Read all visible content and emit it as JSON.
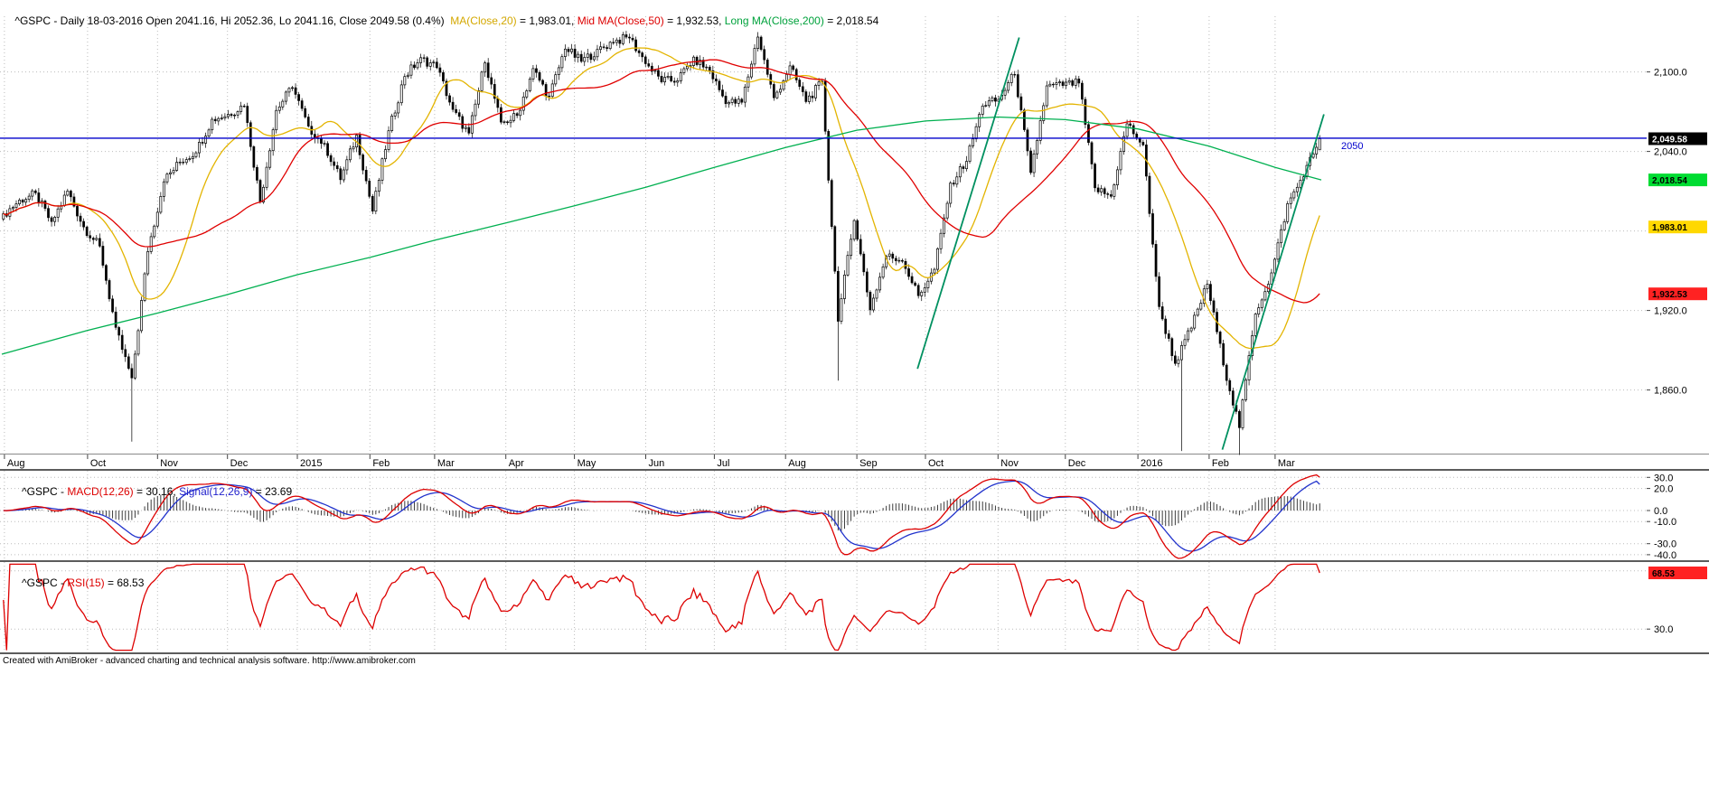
{
  "footer": {
    "text": "Created with AmiBroker - advanced charting and technical analysis software. http://www.amibroker.com"
  },
  "chart_data": [
    {
      "type": "candlestick",
      "symbol": "^GSPC",
      "interval": "Daily",
      "date": "18-03-2016",
      "title_segments": [
        {
          "text": "^GSPC - Daily 18-03-2016 Open 2041.16, Hi 2052.36, Lo 2041.16, Close 2049.58 (0.4%)  ",
          "color": "#000000"
        },
        {
          "text": "MA(Close,20)",
          "color": "#d4a800"
        },
        {
          "text": " = 1,983.01, ",
          "color": "#000000"
        },
        {
          "text": "Mid MA(Close,50)",
          "color": "#dd0000"
        },
        {
          "text": " = 1,932.53, ",
          "color": "#000000"
        },
        {
          "text": "Long MA(Close,200)",
          "color": "#00a23c"
        },
        {
          "text": " = 2,018.54",
          "color": "#000000"
        }
      ],
      "ohlc_last": {
        "open": 2041.16,
        "high": 2052.36,
        "low": 2041.16,
        "close": 2049.58,
        "change_pct": "0.4%"
      },
      "ylim": [
        1812,
        2142
      ],
      "grid_prices": [
        2100,
        2040,
        1980,
        1920,
        1860
      ],
      "y_ticks": [
        {
          "label": "2,100.0",
          "value": 2100
        },
        {
          "label": "2,040.0",
          "value": 2040
        },
        {
          "label": "1,920.0",
          "value": 1920
        },
        {
          "label": "1,860.0",
          "value": 1860
        }
      ],
      "x_months": [
        {
          "label": "Aug",
          "f": 0.002
        },
        {
          "label": "Oct",
          "f": 0.065
        },
        {
          "label": "Nov",
          "f": 0.118
        },
        {
          "label": "Dec",
          "f": 0.171
        },
        {
          "label": "2015",
          "f": 0.224
        },
        {
          "label": "Feb",
          "f": 0.279
        },
        {
          "label": "Mar",
          "f": 0.328
        },
        {
          "label": "Apr",
          "f": 0.382
        },
        {
          "label": "May",
          "f": 0.434
        },
        {
          "label": "Jun",
          "f": 0.488
        },
        {
          "label": "Jul",
          "f": 0.54
        },
        {
          "label": "Aug",
          "f": 0.594
        },
        {
          "label": "Sep",
          "f": 0.648
        },
        {
          "label": "Oct",
          "f": 0.7
        },
        {
          "label": "Nov",
          "f": 0.755
        },
        {
          "label": "Dec",
          "f": 0.806
        },
        {
          "label": "2016",
          "f": 0.861
        },
        {
          "label": "Feb",
          "f": 0.915
        },
        {
          "label": "Mar",
          "f": 0.965
        }
      ],
      "close_weekly": [
        1992,
        2003,
        2008,
        1986,
        2010,
        1983,
        1968,
        1906,
        1868,
        1965,
        2018,
        2032,
        2040,
        2064,
        2068,
        2075,
        2002,
        2071,
        2089,
        2058,
        2045,
        2019,
        2052,
        1995,
        2055,
        2097,
        2110,
        2104,
        2071,
        2053,
        2108,
        2061,
        2067,
        2102,
        2081,
        2118,
        2108,
        2116,
        2123,
        2126,
        2107,
        2093,
        2094,
        2110,
        2101,
        2077,
        2077,
        2127,
        2080,
        2104,
        2078,
        2092,
        1913,
        1989,
        1921,
        1961,
        1958,
        1931,
        1951,
        2015,
        2033,
        2075,
        2079,
        2099,
        2023,
        2089,
        2090,
        2092,
        2012,
        2006,
        2061,
        2044,
        1922,
        1880,
        1907,
        1940,
        1880,
        1832,
        1918,
        1948,
        2000,
        2022,
        2049.58
      ],
      "spike_lows": [
        {
          "f": 0.098,
          "price": 1821
        },
        {
          "f": 0.634,
          "price": 1867
        },
        {
          "f": 0.896,
          "price": 1814
        },
        {
          "f": 0.939,
          "price": 1811
        }
      ],
      "ma_overlays": {
        "ma20": {
          "label": "MA(Close,20)",
          "period": 20,
          "last": 1983.01,
          "color": "#e3b400"
        },
        "ma50": {
          "label": "Mid MA(Close,50)",
          "period": 50,
          "last": 1932.53,
          "color": "#e00000"
        },
        "ma200": {
          "label": "Long MA(Close,200)",
          "period": 200,
          "last": 2018.54,
          "color": "#00b050",
          "fractions": [
            0,
            0.065,
            0.118,
            0.171,
            0.224,
            0.279,
            0.328,
            0.382,
            0.434,
            0.488,
            0.54,
            0.594,
            0.648,
            0.7,
            0.755,
            0.806,
            0.861,
            0.915,
            0.965,
            1.0
          ],
          "values": [
            1887,
            1905,
            1918,
            1932,
            1947,
            1960,
            1973,
            1986,
            1999,
            2013,
            2028,
            2043,
            2056,
            2063,
            2066,
            2064,
            2057,
            2044,
            2028,
            2018.54
          ]
        }
      },
      "hline": {
        "value": 2050,
        "label": "2050",
        "color": "#0000cc"
      },
      "trendlines": [
        {
          "x1": 0.694,
          "p1": 1876,
          "x2": 0.771,
          "p2": 2126
        },
        {
          "x1": 0.925,
          "p1": 1815,
          "x2": 1.002,
          "p2": 2068
        }
      ],
      "price_tags": [
        {
          "name": "close-price-tag",
          "label": "2,049.58",
          "value": 2049.58,
          "bg": "#000000",
          "fg": "#ffffff"
        },
        {
          "name": "ma200-price-tag",
          "label": "2,018.54",
          "value": 2018.54,
          "bg": "#00dc32",
          "fg": "#000000"
        },
        {
          "name": "ma20-price-tag",
          "label": "1,983.01",
          "value": 1983.01,
          "bg": "#ffd800",
          "fg": "#000000"
        },
        {
          "name": "ma50-price-tag",
          "label": "1,932.53",
          "value": 1932.53,
          "bg": "#ff2222",
          "fg": "#000000"
        }
      ]
    },
    {
      "type": "macd",
      "title_segments": [
        {
          "text": "^GSPC - ",
          "color": "#000000"
        },
        {
          "text": "MACD(12,26)",
          "color": "#dd0000"
        },
        {
          "text": " = 30.16, ",
          "color": "#000000"
        },
        {
          "text": "Signal(12,26,9)",
          "color": "#2222cc"
        },
        {
          "text": " = 23.69",
          "color": "#000000"
        }
      ],
      "macd_fast": 12,
      "macd_slow": 26,
      "signal_period": 9,
      "macd_value": 30.16,
      "signal_value": 23.69,
      "ylim": [
        -45,
        36
      ],
      "y_ticks": [
        {
          "label": "30.0",
          "value": 30
        },
        {
          "label": "20.0",
          "value": 20
        },
        {
          "label": "0.0",
          "value": 0
        },
        {
          "label": "-10.0",
          "value": -10
        },
        {
          "label": "-30.0",
          "value": -30
        },
        {
          "label": "-40.0",
          "value": -40
        }
      ],
      "colors": {
        "macd": "#dd0000",
        "signal": "#2233cc",
        "histogram": "#3c3c3c"
      }
    },
    {
      "type": "rsi",
      "title_segments": [
        {
          "text": "^GSPC - ",
          "color": "#000000"
        },
        {
          "text": "RSI(15)",
          "color": "#dd0000"
        },
        {
          "text": " = 68.53",
          "color": "#000000"
        }
      ],
      "period": 15,
      "rsi_value": 68.53,
      "ylim": [
        14,
        76
      ],
      "grid_values": [
        70,
        30
      ],
      "y_ticks": [
        {
          "label": "30.0",
          "value": 30
        }
      ],
      "tag": {
        "name": "rsi-value-tag",
        "label": "68.53",
        "value": 68.53,
        "bg": "#ff2222",
        "fg": "#000000"
      },
      "colors": {
        "rsi": "#dd0000"
      }
    }
  ]
}
